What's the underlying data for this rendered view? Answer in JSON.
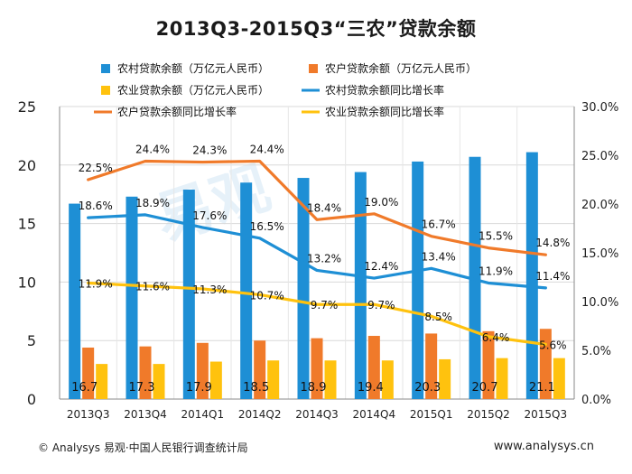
{
  "title": "2013Q3-2015Q3“三农”贷款余额",
  "footer": {
    "left": "© Analysys 易观·中国人民银行调查统计局",
    "right": "www.analysys.cn"
  },
  "watermark": "易观",
  "colors": {
    "rural_bar": "#1e8fd5",
    "household_bar": "#f07a2a",
    "agri_bar": "#ffc20e",
    "rural_line": "#1e8fd5",
    "household_line": "#f07a2a",
    "agri_line": "#ffc20e"
  },
  "chart_data": {
    "type": "bar",
    "categories": [
      "2013Q3",
      "2013Q4",
      "2014Q1",
      "2014Q2",
      "2014Q3",
      "2014Q4",
      "2015Q1",
      "2015Q2",
      "2015Q3"
    ],
    "left_axis": {
      "min": 0,
      "max": 25,
      "ticks": [
        "0",
        "5",
        "10",
        "15",
        "20",
        "25"
      ]
    },
    "right_axis": {
      "min": 0,
      "max": 30,
      "ticks": [
        "0.0%",
        "5.0%",
        "10.0%",
        "15.0%",
        "20.0%",
        "25.0%",
        "30.0%"
      ]
    },
    "bar_series": [
      {
        "name": "农村贷款余额（万亿元人民币）",
        "values": [
          16.7,
          17.3,
          17.9,
          18.5,
          18.9,
          19.4,
          20.3,
          20.7,
          21.1
        ],
        "labels": [
          "16.7",
          "17.3",
          "17.9",
          "18.5",
          "18.9",
          "19.4",
          "20.3",
          "20.7",
          "21.1"
        ]
      },
      {
        "name": "农户贷款余额（万亿元人民币）",
        "values": [
          4.4,
          4.5,
          4.8,
          5.0,
          5.2,
          5.4,
          5.6,
          5.8,
          6.0
        ]
      },
      {
        "name": "农业贷款余额（万亿元人民币）",
        "values": [
          3.0,
          3.0,
          3.2,
          3.3,
          3.3,
          3.3,
          3.4,
          3.5,
          3.5
        ]
      }
    ],
    "line_series": [
      {
        "name": "农村贷款余额同比增长率",
        "values": [
          18.6,
          18.9,
          17.6,
          16.5,
          13.2,
          12.4,
          13.4,
          11.9,
          11.4
        ],
        "labels": [
          "18.6%",
          "18.9%",
          "17.6%",
          "16.5%",
          "13.2%",
          "12.4%",
          "13.4%",
          "11.9%",
          "11.4%"
        ]
      },
      {
        "name": "农户贷款余额同比增长率",
        "values": [
          22.5,
          24.4,
          24.3,
          24.4,
          18.4,
          19.0,
          16.7,
          15.5,
          14.8
        ],
        "labels": [
          "22.5%",
          "24.4%",
          "24.3%",
          "24.4%",
          "18.4%",
          "19.0%",
          "16.7%",
          "15.5%",
          "14.8%"
        ]
      },
      {
        "name": "农业贷款余额同比增长率",
        "values": [
          11.9,
          11.6,
          11.3,
          10.7,
          9.7,
          9.7,
          8.5,
          6.4,
          5.6
        ],
        "labels": [
          "11.9%",
          "11.6%",
          "11.3%",
          "10.7%",
          "9.7%",
          "9.7%",
          "8.5%",
          "6.4%",
          "5.6%"
        ]
      }
    ],
    "legend_position": "top",
    "grid": true
  }
}
